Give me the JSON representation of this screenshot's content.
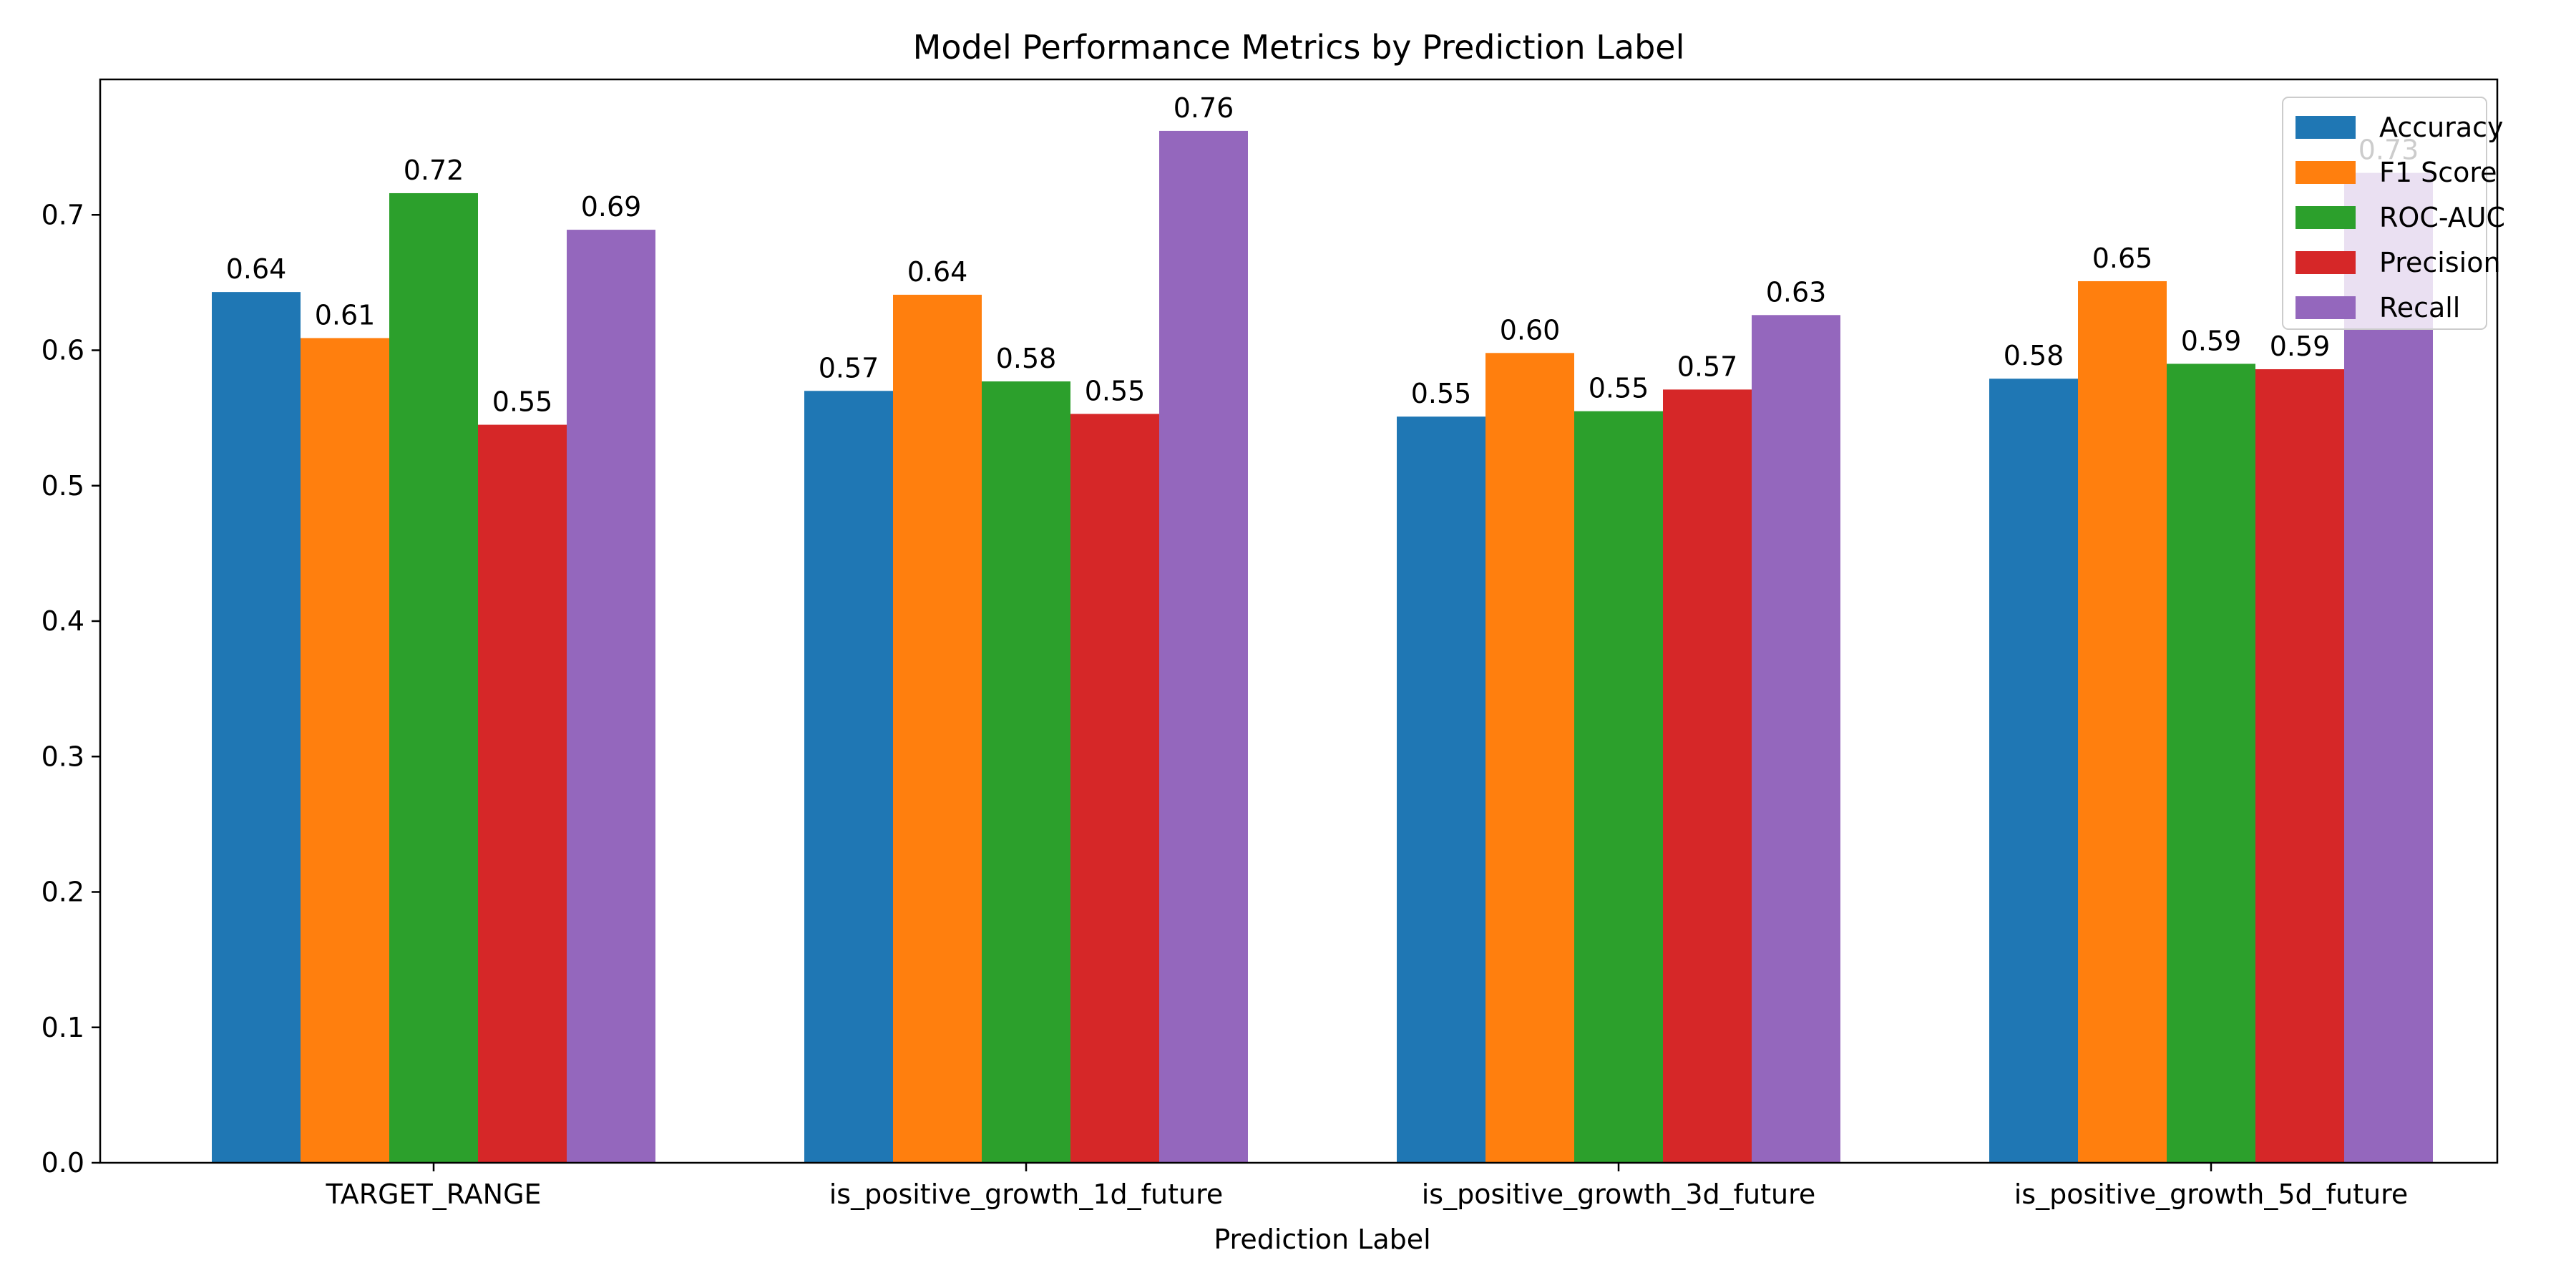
{
  "chart_data": {
    "type": "bar",
    "title": "Model Performance Metrics by Prediction Label",
    "xlabel": "Prediction Label",
    "ylabel": "",
    "ylim": [
      0,
      0.8
    ],
    "yticks": [
      "0.0",
      "0.1",
      "0.2",
      "0.3",
      "0.4",
      "0.5",
      "0.6",
      "0.7"
    ],
    "categories": [
      "TARGET_RANGE",
      "is_positive_growth_1d_future",
      "is_positive_growth_3d_future",
      "is_positive_growth_5d_future"
    ],
    "series": [
      {
        "name": "Accuracy",
        "color": "#1f77b4",
        "values": [
          0.643,
          0.57,
          0.551,
          0.579
        ],
        "labels": [
          "0.64",
          "0.57",
          "0.55",
          "0.58"
        ]
      },
      {
        "name": "F1 Score",
        "color": "#ff7f0e",
        "values": [
          0.609,
          0.641,
          0.598,
          0.651
        ],
        "labels": [
          "0.61",
          "0.64",
          "0.60",
          "0.65"
        ]
      },
      {
        "name": "ROC-AUC",
        "color": "#2ca02c",
        "values": [
          0.716,
          0.577,
          0.555,
          0.59
        ],
        "labels": [
          "0.72",
          "0.58",
          "0.55",
          "0.59"
        ]
      },
      {
        "name": "Precision",
        "color": "#d62728",
        "values": [
          0.545,
          0.553,
          0.571,
          0.586
        ],
        "labels": [
          "0.55",
          "0.55",
          "0.57",
          "0.59"
        ]
      },
      {
        "name": "Recall",
        "color": "#9467bd",
        "values": [
          0.689,
          0.762,
          0.626,
          0.731
        ],
        "labels": [
          "0.69",
          "0.76",
          "0.63",
          "0.73"
        ]
      }
    ],
    "grid": false,
    "legend_position": "top-right"
  }
}
